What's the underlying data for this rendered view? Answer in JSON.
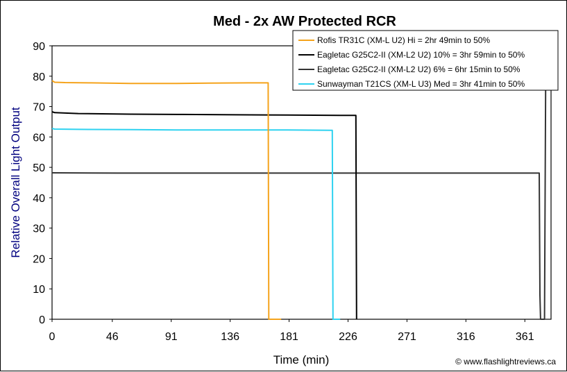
{
  "chart_data": {
    "type": "line",
    "title": "Med - 2x AW Protected RCR",
    "xlabel": "Time (min)",
    "ylabel": "Relative Overall Light Output",
    "xlim": [
      0,
      381
    ],
    "ylim": [
      0,
      90
    ],
    "x_ticks": [
      0,
      46,
      91,
      136,
      181,
      226,
      271,
      316,
      361
    ],
    "y_ticks": [
      0,
      10,
      20,
      30,
      40,
      50,
      60,
      70,
      80,
      90
    ],
    "grid": false,
    "legend_position": "top-right",
    "credit": "© www.flashlightreviews.ca",
    "colors": {
      "axis_text": "#000000",
      "ylabel": "#00007f"
    },
    "series": [
      {
        "name": "Rofis TR31C (XM-L U2) Hi = 2hr 49min to 50%",
        "color": "#f5a31b",
        "x": [
          0,
          2,
          10,
          30,
          60,
          90,
          120,
          150,
          164,
          165,
          165.5,
          167,
          175
        ],
        "y": [
          78.5,
          78,
          77.9,
          77.8,
          77.6,
          77.6,
          77.7,
          77.8,
          77.8,
          77.8,
          0,
          0,
          0
        ]
      },
      {
        "name": "Eagletac G25C2-II (XM-L2 U2) 10% = 3hr 59min to 50%",
        "color": "#000000",
        "x": [
          0,
          2,
          20,
          60,
          100,
          140,
          180,
          220,
          231,
          232,
          232.5
        ],
        "y": [
          68.3,
          68,
          67.7,
          67.5,
          67.4,
          67.3,
          67.2,
          67.1,
          67.1,
          67.1,
          0
        ]
      },
      {
        "name": "Eagletac G25C2-II (XM-L2 U2) 6% = 6hr 15min to 50%",
        "color": "#333333",
        "x": [
          0,
          50,
          100,
          150,
          200,
          250,
          300,
          350,
          372,
          372.5,
          373,
          376,
          377
        ],
        "y": [
          48.2,
          48.1,
          48.1,
          48.1,
          48.1,
          48.1,
          48.1,
          48.1,
          48.1,
          8,
          0,
          0,
          90
        ]
      },
      {
        "name": "Sunwayman T21CS (XM-L U3) Med = 3hr 41min to 50%",
        "color": "#2ed2f0",
        "x": [
          0,
          2,
          20,
          60,
          100,
          140,
          180,
          213,
          214,
          214.5,
          216,
          220
        ],
        "y": [
          62.8,
          62.6,
          62.5,
          62.4,
          62.3,
          62.3,
          62.3,
          62.2,
          62.2,
          0,
          0,
          0
        ]
      }
    ]
  }
}
